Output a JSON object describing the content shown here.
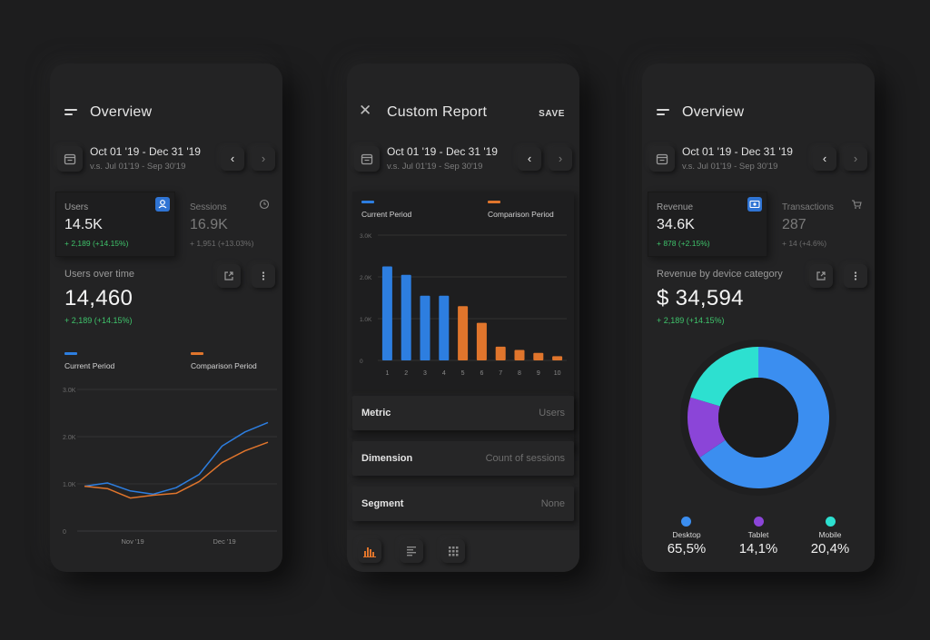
{
  "phones": [
    {
      "title": "Overview",
      "date_range": "Oct 01 '19 - Dec 31 '19",
      "compare_range": "v.s. Jul 01'19 - Sep 30'19",
      "metrics": [
        {
          "label": "Users",
          "value": "14.5K",
          "delta": "+ 2,189 (+14.15%)",
          "icon": "user-icon"
        },
        {
          "label": "Sessions",
          "value": "16.9K",
          "delta": "+ 1,951 (+13.03%)",
          "icon": "clock-icon"
        }
      ],
      "section_title": "Users over time",
      "big_value": "14,460",
      "big_delta": "+ 2,189 (+14.15%)",
      "legend": [
        "Current Period",
        "Comparison Period"
      ]
    },
    {
      "title": "Custom Report",
      "save_label": "SAVE",
      "date_range": "Oct 01 '19 - Dec 31 '19",
      "compare_range": "v.s. Jul 01'19 - Sep 30'19",
      "legend": [
        "Current Period",
        "Comparison Period"
      ],
      "rows": [
        {
          "label": "Metric",
          "value": "Users"
        },
        {
          "label": "Dimension",
          "value": "Count of sessions"
        },
        {
          "label": "Segment",
          "value": "None"
        }
      ],
      "bottom_tools": [
        "bar-chart-icon",
        "list-icon",
        "grid-icon"
      ]
    },
    {
      "title": "Overview",
      "date_range": "Oct 01 '19 - Dec 31 '19",
      "compare_range": "v.s. Jul 01'19 - Sep 30'19",
      "metrics": [
        {
          "label": "Revenue",
          "value": "34.6K",
          "delta": "+ 878 (+2.15%)",
          "icon": "money-icon"
        },
        {
          "label": "Transactions",
          "value": "287",
          "delta": "+ 14 (+4.6%)",
          "icon": "cart-icon"
        }
      ],
      "section_title": "Revenue by device category",
      "big_value": "$ 34,594",
      "big_delta": "+ 2,189 (+14.15%)",
      "devices": [
        {
          "label": "Desktop",
          "value": "65,5%"
        },
        {
          "label": "Tablet",
          "value": "14,1%"
        },
        {
          "label": "Mobile",
          "value": "20,4%"
        }
      ]
    }
  ],
  "colors": {
    "current": "#2d7ee0",
    "comparison": "#e0752c",
    "positive": "#3fc36b",
    "desktop": "#3b8ef0",
    "tablet": "#8b45d8",
    "mobile": "#2de0d0"
  },
  "chart_data": [
    {
      "type": "line",
      "x_ticks": [
        "Nov '19",
        "Dec '19"
      ],
      "y_ticks": [
        "0",
        "1.0K",
        "2.0K",
        "3.0K"
      ],
      "ylim": [
        0,
        3000
      ],
      "x": [
        0,
        1,
        2,
        3,
        4,
        5,
        6,
        7,
        8
      ],
      "series": [
        {
          "name": "Current Period",
          "values": [
            950,
            1020,
            850,
            780,
            920,
            1200,
            1800,
            2100,
            2300
          ]
        },
        {
          "name": "Comparison Period",
          "values": [
            950,
            900,
            700,
            760,
            800,
            1050,
            1450,
            1700,
            1880
          ]
        }
      ]
    },
    {
      "type": "bar",
      "categories": [
        "1",
        "2",
        "3",
        "4",
        "5",
        "6",
        "7",
        "8",
        "9",
        "10"
      ],
      "y_ticks": [
        "0",
        "1.0K",
        "2.0K",
        "3.0K"
      ],
      "ylim": [
        0,
        3000
      ],
      "series": [
        {
          "name": "Current Period",
          "values": [
            2250,
            2050,
            1550,
            1550,
            null,
            null,
            null,
            null,
            null,
            null
          ]
        },
        {
          "name": "Comparison Period",
          "values": [
            null,
            null,
            null,
            null,
            1300,
            900,
            330,
            250,
            180,
            100
          ]
        }
      ]
    },
    {
      "type": "pie",
      "categories": [
        "Desktop",
        "Tablet",
        "Mobile"
      ],
      "values": [
        65.5,
        14.1,
        20.4
      ]
    }
  ]
}
